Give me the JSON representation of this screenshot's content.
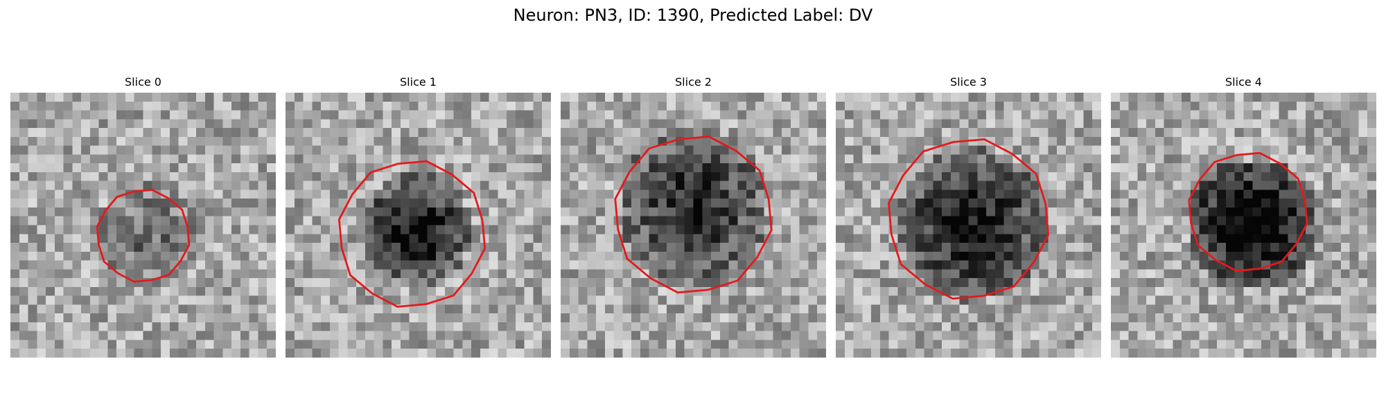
{
  "figure": {
    "title": "Neuron: PN3, ID: 1390, Predicted Label: DV"
  },
  "panels": [
    {
      "title": "Slice 0",
      "contour_color": "#e31a1c"
    },
    {
      "title": "Slice 1",
      "contour_color": "#e31a1c"
    },
    {
      "title": "Slice 2",
      "contour_color": "#e31a1c"
    },
    {
      "title": "Slice 3",
      "contour_color": "#e31a1c"
    },
    {
      "title": "Slice 4",
      "contour_color": "#e31a1c"
    }
  ]
}
